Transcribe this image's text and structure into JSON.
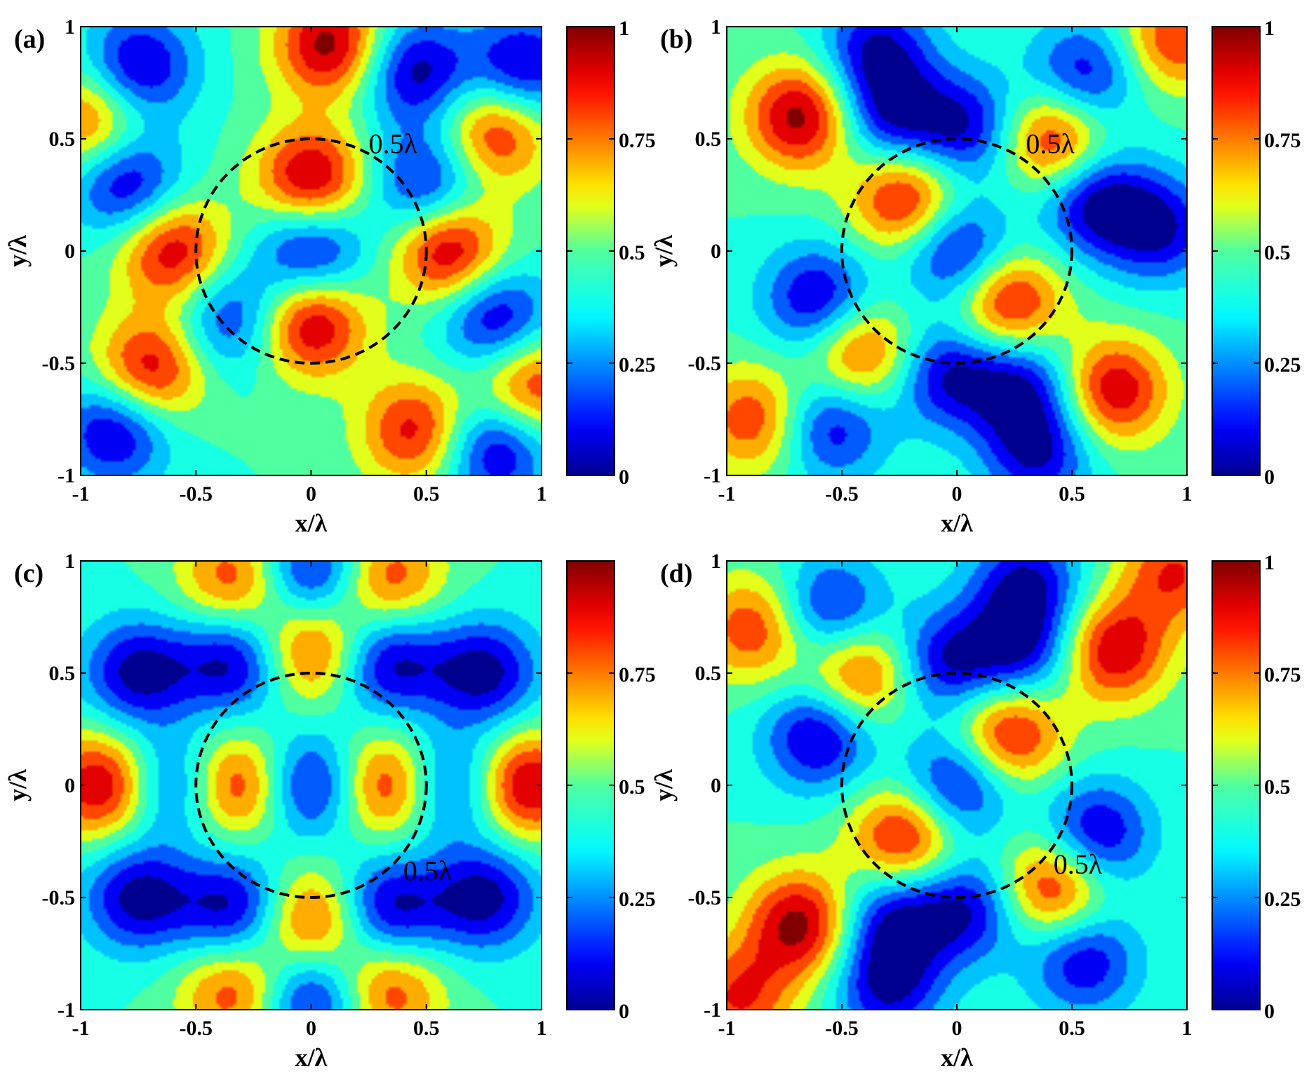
{
  "chart_data": [
    {
      "type": "heatmap",
      "panel_label": "(a)",
      "xlabel": "x/λ",
      "ylabel": "y/λ",
      "xlim": [
        -1,
        1
      ],
      "ylim": [
        -1,
        1
      ],
      "xticks": [
        "-1",
        "-0.5",
        "0",
        "0.5",
        "1"
      ],
      "yticks": [
        "-1",
        "-0.5",
        "0",
        "0.5",
        "1"
      ],
      "colorbar": {
        "range": [
          0,
          1
        ],
        "ticks": [
          "0",
          "0.25",
          "0.5",
          "0.75",
          "1"
        ]
      },
      "circle": {
        "center": [
          0,
          0
        ],
        "radius": 0.5,
        "style": "dashed",
        "label": "0.5λ",
        "label_at": [
          0.25,
          0.48
        ]
      },
      "peaks": [
        {
          "x": 0.0,
          "y": 0.32,
          "v": 1.0
        },
        {
          "x": 0.0,
          "y": -0.32,
          "v": 1.0
        },
        {
          "x": -0.6,
          "y": 0.0,
          "v": 0.95
        },
        {
          "x": 0.6,
          "y": 0.0,
          "v": 1.0
        },
        {
          "x": 0.0,
          "y": 0.0,
          "v": 0.0
        },
        {
          "x": -0.7,
          "y": -0.53,
          "v": 0.95
        },
        {
          "x": 0.08,
          "y": 0.92,
          "v": 1.0
        },
        {
          "x": 0.8,
          "y": 0.53,
          "v": 0.9
        },
        {
          "x": -0.95,
          "y": 0.58,
          "v": 0.85
        },
        {
          "x": 0.95,
          "y": -0.6,
          "v": 0.9
        },
        {
          "x": 0.45,
          "y": -0.8,
          "v": 0.9
        },
        {
          "x": -0.75,
          "y": 0.82,
          "v": 0.0
        },
        {
          "x": -0.8,
          "y": 0.3,
          "v": 0.0
        },
        {
          "x": 0.92,
          "y": 0.82,
          "v": 0.0
        },
        {
          "x": 0.45,
          "y": 0.8,
          "v": 0.0
        },
        {
          "x": 0.8,
          "y": -0.3,
          "v": 0.0
        },
        {
          "x": -0.85,
          "y": -0.8,
          "v": 0.0
        },
        {
          "x": -0.35,
          "y": -0.3,
          "v": 0.1
        },
        {
          "x": 0.8,
          "y": -0.88,
          "v": 0.0
        },
        {
          "x": 0.5,
          "y": 0.3,
          "v": 0.05
        }
      ]
    },
    {
      "type": "heatmap",
      "panel_label": "(b)",
      "xlabel": "x/λ",
      "ylabel": "y/λ",
      "xlim": [
        -1,
        1
      ],
      "ylim": [
        -1,
        1
      ],
      "xticks": [
        "-1",
        "-0.5",
        "0",
        "0.5",
        "1"
      ],
      "yticks": [
        "-1",
        "-0.5",
        "0",
        "0.5",
        "1"
      ],
      "colorbar": {
        "range": [
          0,
          1
        ],
        "ticks": [
          "0",
          "0.25",
          "0.5",
          "0.75",
          "1"
        ]
      },
      "circle": {
        "center": [
          0,
          0
        ],
        "radius": 0.5,
        "style": "dashed",
        "label": "0.5λ",
        "label_at": [
          0.3,
          0.48
        ]
      },
      "peaks": [
        {
          "x": -0.22,
          "y": 0.23,
          "v": 0.95
        },
        {
          "x": 0.22,
          "y": -0.23,
          "v": 0.95
        },
        {
          "x": 0.0,
          "y": 0.0,
          "v": 0.0
        },
        {
          "x": -0.68,
          "y": 0.6,
          "v": 1.0
        },
        {
          "x": 0.68,
          "y": -0.62,
          "v": 0.95
        },
        {
          "x": 0.42,
          "y": 0.5,
          "v": 0.95
        },
        {
          "x": -0.42,
          "y": -0.45,
          "v": 0.9
        },
        {
          "x": -0.88,
          "y": -0.75,
          "v": 0.85
        },
        {
          "x": 0.95,
          "y": 0.95,
          "v": 0.85
        },
        {
          "x": -0.28,
          "y": 0.6,
          "v": 0.05
        },
        {
          "x": 0.28,
          "y": -0.6,
          "v": 0.05
        },
        {
          "x": -0.6,
          "y": -0.22,
          "v": 0.0
        },
        {
          "x": 0.6,
          "y": 0.22,
          "v": 0.0
        },
        {
          "x": -0.55,
          "y": -0.78,
          "v": 0.05
        },
        {
          "x": 0.55,
          "y": 0.78,
          "v": 0.05
        },
        {
          "x": -0.05,
          "y": -0.55,
          "v": 0.05
        },
        {
          "x": 0.05,
          "y": 0.55,
          "v": 0.05
        },
        {
          "x": 0.35,
          "y": -0.9,
          "v": 0.05
        },
        {
          "x": -0.35,
          "y": 0.9,
          "v": 0.05
        },
        {
          "x": 0.88,
          "y": 0.1,
          "v": 0.05
        }
      ]
    },
    {
      "type": "heatmap",
      "panel_label": "(c)",
      "xlabel": "x/λ",
      "ylabel": "y/λ",
      "xlim": [
        -1,
        1
      ],
      "ylim": [
        -1,
        1
      ],
      "xticks": [
        "-1",
        "-0.5",
        "0",
        "0.5",
        "1"
      ],
      "yticks": [
        "-1",
        "-0.5",
        "0",
        "0.5",
        "1"
      ],
      "colorbar": {
        "range": [
          0,
          1
        ],
        "ticks": [
          "0",
          "0.25",
          "0.5",
          "0.75"
        ]
      },
      "circle": {
        "center": [
          0,
          0
        ],
        "radius": 0.5,
        "style": "dashed",
        "label": "0.5λ",
        "label_at": [
          0.4,
          -0.38
        ]
      },
      "peaks": [
        {
          "x": -0.33,
          "y": 0.0,
          "v": 0.95
        },
        {
          "x": 0.33,
          "y": 0.0,
          "v": 0.95
        },
        {
          "x": 0.0,
          "y": 0.0,
          "v": 0.0
        },
        {
          "x": -0.9,
          "y": 0.0,
          "v": 1.0
        },
        {
          "x": 0.93,
          "y": 0.0,
          "v": 1.0
        },
        {
          "x": 0.0,
          "y": 0.6,
          "v": 0.9
        },
        {
          "x": 0.0,
          "y": -0.6,
          "v": 0.9
        },
        {
          "x": -0.33,
          "y": 0.92,
          "v": 0.85
        },
        {
          "x": 0.33,
          "y": 0.92,
          "v": 0.85
        },
        {
          "x": -0.33,
          "y": -0.92,
          "v": 0.85
        },
        {
          "x": 0.33,
          "y": -0.92,
          "v": 0.85
        },
        {
          "x": 0.0,
          "y": 0.95,
          "v": 0.0
        },
        {
          "x": 0.0,
          "y": -0.95,
          "v": 0.0
        },
        {
          "x": -0.33,
          "y": 0.55,
          "v": 0.0
        },
        {
          "x": 0.33,
          "y": 0.55,
          "v": 0.0
        },
        {
          "x": -0.33,
          "y": -0.55,
          "v": 0.0
        },
        {
          "x": 0.33,
          "y": -0.55,
          "v": 0.0
        },
        {
          "x": -0.75,
          "y": 0.5,
          "v": 0.0
        },
        {
          "x": 0.75,
          "y": 0.5,
          "v": 0.0
        },
        {
          "x": -0.75,
          "y": -0.5,
          "v": 0.0
        },
        {
          "x": 0.75,
          "y": -0.5,
          "v": 0.0
        },
        {
          "x": 0.6,
          "y": 0.0,
          "v": 0.05
        },
        {
          "x": -0.6,
          "y": 0.0,
          "v": 0.05
        }
      ]
    },
    {
      "type": "heatmap",
      "panel_label": "(d)",
      "xlabel": "x/λ",
      "ylabel": "y/λ",
      "xlim": [
        -1,
        1
      ],
      "ylim": [
        -1,
        1
      ],
      "xticks": [
        "-1",
        "-0.5",
        "0",
        "0.5",
        "1"
      ],
      "yticks": [
        "-1",
        "-0.5",
        "0",
        "0.5",
        "1"
      ],
      "colorbar": {
        "range": [
          0,
          1
        ],
        "ticks": [
          "0",
          "0.25",
          "0.5",
          "0.75",
          "1"
        ]
      },
      "circle": {
        "center": [
          0,
          0
        ],
        "radius": 0.5,
        "style": "dashed",
        "label": "0.5λ",
        "label_at": [
          0.42,
          -0.35
        ]
      },
      "peaks": [
        {
          "x": 0.22,
          "y": 0.23,
          "v": 0.95
        },
        {
          "x": -0.22,
          "y": -0.23,
          "v": 0.95
        },
        {
          "x": 0.0,
          "y": 0.0,
          "v": 0.0
        },
        {
          "x": 0.68,
          "y": 0.6,
          "v": 0.95
        },
        {
          "x": -0.68,
          "y": -0.62,
          "v": 1.0
        },
        {
          "x": -0.42,
          "y": 0.5,
          "v": 0.9
        },
        {
          "x": 0.42,
          "y": -0.45,
          "v": 0.95
        },
        {
          "x": -0.88,
          "y": 0.7,
          "v": 0.85
        },
        {
          "x": 0.95,
          "y": 0.95,
          "v": 0.85
        },
        {
          "x": -0.95,
          "y": -0.95,
          "v": 0.85
        },
        {
          "x": 0.28,
          "y": 0.6,
          "v": 0.05
        },
        {
          "x": -0.28,
          "y": -0.6,
          "v": 0.05
        },
        {
          "x": 0.6,
          "y": -0.22,
          "v": 0.0
        },
        {
          "x": -0.6,
          "y": 0.22,
          "v": 0.0
        },
        {
          "x": -0.55,
          "y": 0.78,
          "v": 0.05
        },
        {
          "x": 0.55,
          "y": -0.78,
          "v": 0.05
        },
        {
          "x": -0.05,
          "y": 0.55,
          "v": 0.05
        },
        {
          "x": 0.05,
          "y": -0.55,
          "v": 0.05
        },
        {
          "x": -0.3,
          "y": -0.9,
          "v": 0.05
        },
        {
          "x": 0.3,
          "y": 0.9,
          "v": 0.05
        }
      ]
    }
  ]
}
